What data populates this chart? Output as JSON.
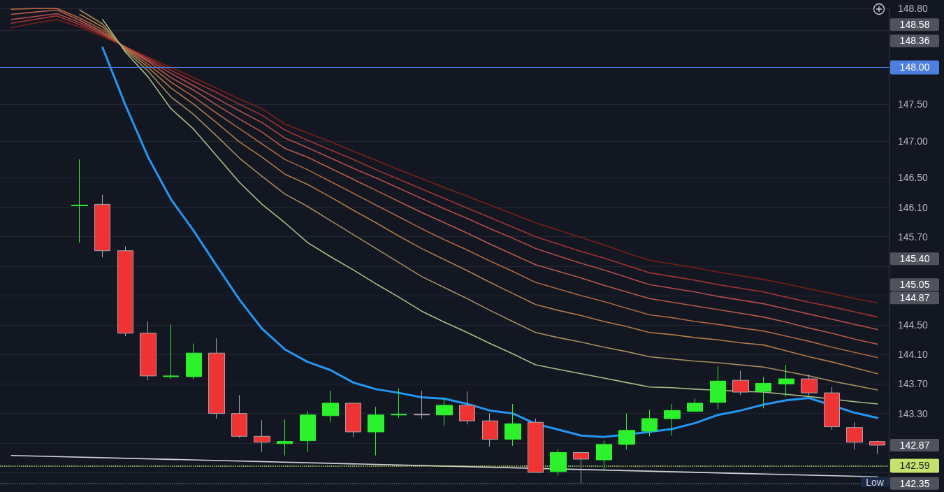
{
  "chart_data": {
    "type": "candlestick",
    "categories": [
      null,
      null,
      null,
      null,
      null,
      null,
      null,
      null,
      null,
      null,
      null,
      null,
      null,
      null,
      null,
      null,
      null,
      null,
      null,
      null,
      null,
      null,
      null,
      null,
      null,
      null,
      null,
      null,
      null,
      null,
      null,
      null,
      null,
      null,
      null,
      null,
      null,
      null,
      null
    ],
    "ohlc": [
      null,
      null,
      null,
      [
        146.12,
        146.75,
        145.62,
        146.13
      ],
      [
        146.14,
        146.27,
        145.42,
        145.51
      ],
      [
        145.51,
        145.57,
        144.35,
        144.39
      ],
      [
        144.39,
        144.55,
        143.75,
        143.81
      ],
      [
        143.8,
        144.51,
        143.77,
        143.81
      ],
      [
        143.8,
        144.25,
        143.76,
        144.12
      ],
      [
        144.12,
        144.32,
        143.23,
        143.3
      ],
      [
        143.3,
        143.55,
        142.97,
        142.99
      ],
      [
        142.99,
        143.21,
        142.78,
        142.91
      ],
      [
        142.89,
        143.22,
        142.73,
        142.92
      ],
      [
        142.93,
        143.33,
        142.78,
        143.28
      ],
      [
        143.27,
        143.61,
        143.18,
        143.44
      ],
      [
        143.44,
        143.44,
        142.98,
        143.05
      ],
      [
        143.05,
        143.39,
        142.73,
        143.28
      ],
      [
        143.28,
        143.64,
        143.24,
        143.29
      ],
      [
        143.29,
        143.61,
        143.23,
        143.28
      ],
      [
        143.28,
        143.52,
        143.13,
        143.41
      ],
      [
        143.41,
        143.6,
        143.15,
        143.2
      ],
      [
        143.2,
        143.3,
        142.85,
        142.95
      ],
      [
        142.95,
        143.43,
        142.86,
        143.16
      ],
      [
        143.18,
        143.23,
        142.5,
        142.5
      ],
      [
        142.51,
        142.81,
        142.46,
        142.77
      ],
      [
        142.77,
        142.78,
        142.35,
        142.68
      ],
      [
        142.67,
        142.93,
        142.53,
        142.88
      ],
      [
        142.88,
        143.3,
        142.81,
        143.07
      ],
      [
        143.06,
        143.35,
        142.99,
        143.23
      ],
      [
        143.23,
        143.43,
        143,
        143.34
      ],
      [
        143.33,
        143.5,
        143.33,
        143.44
      ],
      [
        143.45,
        143.94,
        143.36,
        143.74
      ],
      [
        143.75,
        143.88,
        143.55,
        143.59
      ],
      [
        143.6,
        143.8,
        143.37,
        143.71
      ],
      [
        143.7,
        143.96,
        143.53,
        143.77
      ],
      [
        143.77,
        143.83,
        143.53,
        143.58
      ],
      [
        143.58,
        143.66,
        143.08,
        143.12
      ],
      [
        143.11,
        143.18,
        142.81,
        142.91
      ],
      [
        142.92,
        142.93,
        142.75,
        142.87
      ]
    ],
    "series": [
      {
        "type": "line",
        "color": "#7a2016",
        "values": [
          148.54,
          148.6,
          148.65,
          148.55,
          148.42,
          148.28,
          148.14,
          148,
          147.86,
          147.72,
          147.57,
          147.44,
          147.23,
          147.11,
          146.99,
          146.86,
          146.74,
          146.61,
          146.49,
          146.37,
          146.25,
          146.13,
          146.01,
          145.89,
          145.79,
          145.69,
          145.59,
          145.48,
          145.38,
          145.33,
          145.28,
          145.22,
          145.17,
          145.12,
          145.06,
          144.99,
          144.93,
          144.86,
          144.8
        ]
      },
      {
        "type": "line",
        "color": "#a33232",
        "values": [
          148.6,
          148.65,
          148.7,
          148.58,
          148.44,
          148.28,
          148.12,
          147.96,
          147.81,
          147.66,
          147.5,
          147.35,
          147.15,
          147.01,
          146.88,
          146.75,
          146.61,
          146.48,
          146.35,
          146.22,
          146.09,
          145.96,
          145.83,
          145.7,
          145.6,
          145.5,
          145.41,
          145.31,
          145.21,
          145.16,
          145.11,
          145.05,
          145,
          144.95,
          144.88,
          144.81,
          144.75,
          144.68,
          144.61
        ]
      },
      {
        "type": "line",
        "color": "#b34a4a",
        "values": [
          148.65,
          148.69,
          148.73,
          148.61,
          148.46,
          148.28,
          148.1,
          147.92,
          147.75,
          147.58,
          147.41,
          147.25,
          147.04,
          146.91,
          146.77,
          146.63,
          146.5,
          146.36,
          146.22,
          146.08,
          145.95,
          145.81,
          145.68,
          145.54,
          145.44,
          145.34,
          145.25,
          145.15,
          145.05,
          145,
          144.95,
          144.89,
          144.84,
          144.79,
          144.72,
          144.65,
          144.58,
          144.51,
          144.44
        ]
      },
      {
        "type": "line",
        "color": "#b85a48",
        "values": [
          148.72,
          148.75,
          148.78,
          148.64,
          148.48,
          148.27,
          148.08,
          147.86,
          147.69,
          147.49,
          147.3,
          147.12,
          146.9,
          146.78,
          146.63,
          146.48,
          146.33,
          146.18,
          146.03,
          145.89,
          145.75,
          145.6,
          145.46,
          145.32,
          145.23,
          145.14,
          145.04,
          144.95,
          144.86,
          144.81,
          144.76,
          144.71,
          144.66,
          144.61,
          144.54,
          144.46,
          144.39,
          144.31,
          144.24
        ]
      },
      {
        "type": "line",
        "color": "#ad6540",
        "values": [
          148.79,
          148.8,
          148.8,
          148.67,
          148.51,
          148.26,
          148.04,
          147.8,
          147.6,
          147.38,
          147.17,
          146.96,
          146.75,
          146.61,
          146.45,
          146.29,
          146.13,
          145.97,
          145.81,
          145.66,
          145.52,
          145.37,
          145.23,
          145.08,
          144.99,
          144.9,
          144.82,
          144.73,
          144.64,
          144.6,
          144.55,
          144.51,
          144.46,
          144.42,
          144.35,
          144.28,
          144.2,
          144.13,
          144.06
        ]
      },
      {
        "type": "line",
        "color": "#b07a42",
        "values": [
          null,
          null,
          null,
          148.72,
          148.55,
          148.25,
          148,
          147.72,
          147.5,
          147.25,
          146.99,
          146.78,
          146.55,
          146.41,
          146.24,
          146.06,
          145.89,
          145.71,
          145.54,
          145.39,
          145.24,
          145.08,
          144.93,
          144.78,
          144.7,
          144.63,
          144.55,
          144.48,
          144.4,
          144.37,
          144.33,
          144.3,
          144.26,
          144.23,
          144.15,
          144.07,
          144,
          143.92,
          143.84
        ]
      },
      {
        "type": "line",
        "color": "#a48c5a",
        "values": [
          null,
          null,
          null,
          148.78,
          148.59,
          148.23,
          147.95,
          147.6,
          147.36,
          147.07,
          146.77,
          146.52,
          146.28,
          146.11,
          145.92,
          145.73,
          145.54,
          145.35,
          145.16,
          145.01,
          144.86,
          144.7,
          144.55,
          144.4,
          144.33,
          144.27,
          144.2,
          144.14,
          144.07,
          144.04,
          144.01,
          143.99,
          143.96,
          143.93,
          143.87,
          143.81,
          143.74,
          143.68,
          143.62
        ]
      },
      {
        "type": "line",
        "color": "#a3c184",
        "values": [
          null,
          null,
          null,
          null,
          148.65,
          148.21,
          147.87,
          147.44,
          147.16,
          146.8,
          146.44,
          146.14,
          145.89,
          145.62,
          145.43,
          145.25,
          145.06,
          144.88,
          144.69,
          144.54,
          144.4,
          144.25,
          144.11,
          143.96,
          143.9,
          143.84,
          143.78,
          143.72,
          143.66,
          143.65,
          143.63,
          null,
          143.6,
          143.59,
          143.56,
          143.53,
          null,
          143.46,
          143.43
        ]
      },
      {
        "type": "line",
        "color": "#2196f3",
        "values": [
          null,
          null,
          null,
          null,
          148.27,
          147.49,
          146.78,
          146.21,
          145.78,
          145.31,
          144.85,
          144.45,
          144.17,
          144,
          143.89,
          143.72,
          143.63,
          143.58,
          143.52,
          143.5,
          143.43,
          143.34,
          143.3,
          143.16,
          143.08,
          143,
          142.98,
          null,
          143.05,
          143.09,
          143.17,
          143.28,
          143.34,
          143.42,
          143.48,
          143.51,
          null,
          143.31,
          143.24
        ]
      },
      {
        "type": "line",
        "color": "#d4d4d8",
        "values": [
          142.73,
          null,
          null,
          null,
          null,
          null,
          null,
          null,
          null,
          null,
          null,
          null,
          null,
          null,
          null,
          null,
          null,
          null,
          null,
          null,
          null,
          null,
          null,
          null,
          null,
          null,
          null,
          null,
          null,
          null,
          null,
          null,
          null,
          null,
          null,
          null,
          null,
          null,
          142.44
        ]
      }
    ],
    "ylim": [
      142.3,
      148.82
    ],
    "yticks": [
      {
        "value": 148.8,
        "label": "148.80"
      },
      {
        "value": 148.5,
        "label": null
      },
      {
        "value": 148,
        "label": null
      },
      {
        "value": 147.5,
        "label": "147.50"
      },
      {
        "value": 147,
        "label": "147.00"
      },
      {
        "value": 146.5,
        "label": "146.50"
      },
      {
        "value": 146.1,
        "label": "146.10"
      },
      {
        "value": 145.7,
        "label": "145.70"
      },
      {
        "value": 145.3,
        "label": null
      },
      {
        "value": 144.9,
        "label": null
      },
      {
        "value": 144.5,
        "label": "144.50"
      },
      {
        "value": 144.1,
        "label": "144.10"
      },
      {
        "value": 143.7,
        "label": "143.70"
      },
      {
        "value": 143.3,
        "label": "143.30"
      },
      {
        "value": 142.9,
        "label": null
      },
      {
        "value": 142.5,
        "label": null
      }
    ],
    "ref_lines": [
      {
        "axis": "y",
        "value": 148,
        "label": "148.00",
        "color": "#4d7fe3",
        "line_style": "solid"
      },
      {
        "axis": "y",
        "value": 142.59,
        "label": "142.59",
        "color": "#c5e36b",
        "line_style": "dotted"
      },
      {
        "axis": "y",
        "value": 142.35,
        "label": "Low",
        "color": "#56607a",
        "line_style": "dotted"
      }
    ],
    "annotations": [
      "148.58",
      "148.36",
      "145.40",
      "145.05",
      "144.87",
      "142.87",
      "142.35"
    ],
    "grid": "y",
    "tick_labels": "y",
    "marker": "none"
  }
}
